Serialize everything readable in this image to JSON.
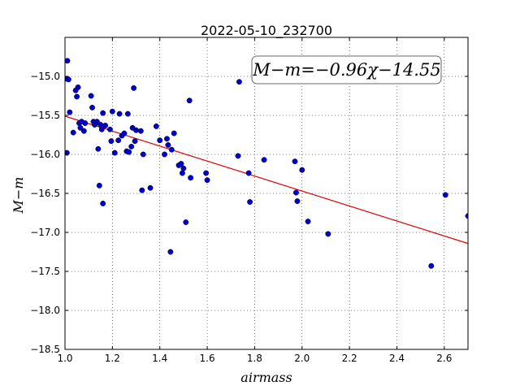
{
  "chart_data": {
    "type": "scatter",
    "title": "2022-05-10_232700",
    "xlabel": "airmass",
    "ylabel": "M−m",
    "xlim": [
      1.0,
      2.7
    ],
    "ylim": [
      -18.5,
      -14.5
    ],
    "y_inverted": false,
    "grid": true,
    "x_ticks": [
      1.0,
      1.2,
      1.4,
      1.6,
      1.8,
      2.0,
      2.2,
      2.4,
      2.6
    ],
    "x_tick_labels": [
      "1.0",
      "1.2",
      "1.4",
      "1.6",
      "1.8",
      "2.0",
      "2.2",
      "2.4",
      "2.6"
    ],
    "y_ticks": [
      -15.0,
      -15.5,
      -16.0,
      -16.5,
      -17.0,
      -17.5,
      -18.0,
      -18.5
    ],
    "y_tick_labels": [
      "−15.0",
      "−15.5",
      "−16.0",
      "−16.5",
      "−17.0",
      "−17.5",
      "−18.0",
      "−18.5"
    ],
    "annotation": "M−m=−0.96χ−14.55",
    "fit": {
      "slope": -0.96,
      "intercept": -14.55,
      "color": "#dd0000"
    },
    "point_color": "#0000cc",
    "points": [
      [
        1.005,
        -15.03
      ],
      [
        1.01,
        -14.8
      ],
      [
        1.015,
        -15.04
      ],
      [
        1.008,
        -15.98
      ],
      [
        1.02,
        -15.46
      ],
      [
        1.035,
        -15.72
      ],
      [
        1.045,
        -15.18
      ],
      [
        1.05,
        -15.26
      ],
      [
        1.055,
        -15.14
      ],
      [
        1.06,
        -15.6
      ],
      [
        1.065,
        -15.66
      ],
      [
        1.07,
        -15.58
      ],
      [
        1.08,
        -15.7
      ],
      [
        1.085,
        -15.6
      ],
      [
        1.11,
        -15.25
      ],
      [
        1.115,
        -15.4
      ],
      [
        1.12,
        -15.58
      ],
      [
        1.125,
        -15.62
      ],
      [
        1.13,
        -15.6
      ],
      [
        1.135,
        -15.58
      ],
      [
        1.14,
        -15.93
      ],
      [
        1.145,
        -16.4
      ],
      [
        1.15,
        -15.62
      ],
      [
        1.155,
        -15.68
      ],
      [
        1.16,
        -16.63
      ],
      [
        1.16,
        -15.47
      ],
      [
        1.17,
        -15.63
      ],
      [
        1.19,
        -15.68
      ],
      [
        1.195,
        -15.83
      ],
      [
        1.2,
        -15.45
      ],
      [
        1.21,
        -15.98
      ],
      [
        1.225,
        -15.82
      ],
      [
        1.23,
        -15.48
      ],
      [
        1.24,
        -15.76
      ],
      [
        1.25,
        -15.73
      ],
      [
        1.26,
        -15.96
      ],
      [
        1.265,
        -15.48
      ],
      [
        1.27,
        -15.97
      ],
      [
        1.28,
        -15.9
      ],
      [
        1.285,
        -15.66
      ],
      [
        1.29,
        -15.15
      ],
      [
        1.295,
        -15.83
      ],
      [
        1.3,
        -15.69
      ],
      [
        1.32,
        -15.7
      ],
      [
        1.325,
        -16.46
      ],
      [
        1.33,
        -16.0
      ],
      [
        1.36,
        -16.43
      ],
      [
        1.385,
        -15.64
      ],
      [
        1.4,
        -15.82
      ],
      [
        1.42,
        -16.0
      ],
      [
        1.43,
        -15.8
      ],
      [
        1.435,
        -15.88
      ],
      [
        1.445,
        -17.25
      ],
      [
        1.45,
        -15.94
      ],
      [
        1.46,
        -15.73
      ],
      [
        1.48,
        -16.14
      ],
      [
        1.49,
        -16.12
      ],
      [
        1.495,
        -16.24
      ],
      [
        1.5,
        -16.18
      ],
      [
        1.51,
        -16.87
      ],
      [
        1.525,
        -15.31
      ],
      [
        1.53,
        -16.3
      ],
      [
        1.595,
        -16.24
      ],
      [
        1.6,
        -16.33
      ],
      [
        1.73,
        -16.02
      ],
      [
        1.735,
        -15.07
      ],
      [
        1.775,
        -16.24
      ],
      [
        1.78,
        -16.61
      ],
      [
        1.84,
        -16.07
      ],
      [
        1.97,
        -16.09
      ],
      [
        1.975,
        -16.49
      ],
      [
        1.98,
        -16.6
      ],
      [
        2.0,
        -16.2
      ],
      [
        2.025,
        -16.86
      ],
      [
        2.11,
        -17.02
      ],
      [
        2.545,
        -17.43
      ],
      [
        2.605,
        -16.52
      ],
      [
        2.7,
        -16.79
      ]
    ]
  }
}
